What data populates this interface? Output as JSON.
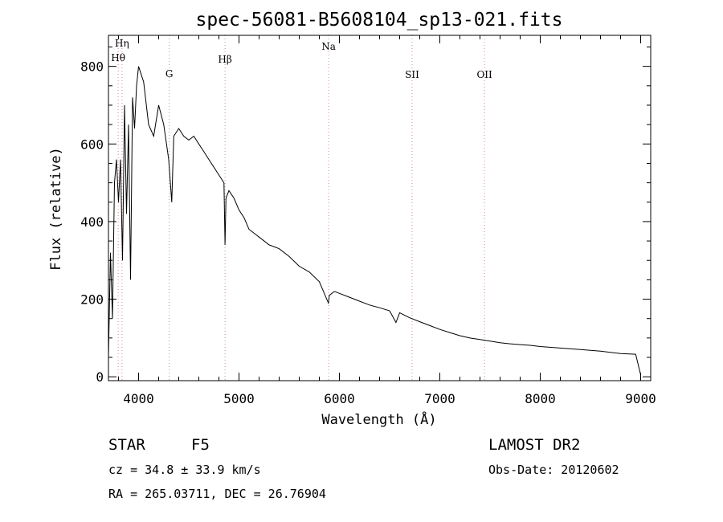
{
  "chart_data": {
    "type": "line",
    "title": "spec-56081-B5608104_sp13-021.fits",
    "xlabel": "Wavelength (Å)",
    "ylabel": "Flux (relative)",
    "xlim": [
      3700,
      9100
    ],
    "ylim": [
      -10,
      880
    ],
    "x_ticks": [
      4000,
      5000,
      6000,
      7000,
      8000,
      9000
    ],
    "x_tick_labels": [
      "4000",
      "5000",
      "6000",
      "7000",
      "8000",
      "9000"
    ],
    "y_ticks": [
      0,
      200,
      400,
      600,
      800
    ],
    "y_tick_labels": [
      "0",
      "200",
      "400",
      "600",
      "800"
    ],
    "grid": false,
    "series": [
      {
        "x": [
          3700,
          3720,
          3740,
          3760,
          3780,
          3800,
          3820,
          3840,
          3860,
          3880,
          3900,
          3920,
          3940,
          3960,
          3980,
          4000,
          4050,
          4100,
          4150,
          4200,
          4250,
          4300,
          4330,
          4350,
          4400,
          4450,
          4500,
          4550,
          4600,
          4650,
          4700,
          4750,
          4800,
          4850,
          4861,
          4870,
          4900,
          4950,
          5000,
          5050,
          5100,
          5150,
          5200,
          5300,
          5400,
          5500,
          5600,
          5700,
          5800,
          5890,
          5900,
          5950,
          6000,
          6100,
          6200,
          6300,
          6400,
          6500,
          6563,
          6600,
          6700,
          6800,
          6900,
          7000,
          7100,
          7200,
          7300,
          7400,
          7500,
          7600,
          7700,
          7800,
          7900,
          8000,
          8200,
          8400,
          8600,
          8800,
          8950,
          9000
        ],
        "y": [
          50,
          320,
          150,
          500,
          560,
          450,
          560,
          300,
          700,
          420,
          650,
          250,
          720,
          640,
          750,
          800,
          760,
          650,
          620,
          700,
          650,
          560,
          450,
          620,
          640,
          620,
          610,
          620,
          600,
          580,
          560,
          540,
          520,
          500,
          340,
          460,
          480,
          460,
          430,
          410,
          380,
          370,
          360,
          340,
          330,
          310,
          285,
          270,
          245,
          190,
          210,
          220,
          215,
          205,
          195,
          185,
          178,
          170,
          140,
          165,
          152,
          142,
          132,
          122,
          114,
          106,
          100,
          96,
          92,
          88,
          85,
          83,
          81,
          78,
          74,
          70,
          66,
          60,
          58,
          5
        ]
      }
    ],
    "lines": [
      {
        "label": "Hη",
        "x": 3835
      },
      {
        "label": "Hθ",
        "x": 3797
      },
      {
        "label": "G",
        "x": 4305
      },
      {
        "label": "Hβ",
        "x": 4861
      },
      {
        "label": "Na",
        "x": 5893
      },
      {
        "label": "SII",
        "x": 6724
      },
      {
        "label": "OII",
        "x": 7445
      }
    ]
  },
  "info": {
    "object_class": "STAR",
    "subclass": "F5",
    "survey": "LAMOST DR2",
    "cz": "cz = 34.8 ± 33.9 km/s",
    "obs_date": "Obs-Date: 20120602",
    "coords": "RA = 265.03711, DEC =  26.76904"
  },
  "colors": {
    "spectrum": "#000000",
    "line_marker": "#d0a0a0",
    "background": "#ffffff"
  }
}
